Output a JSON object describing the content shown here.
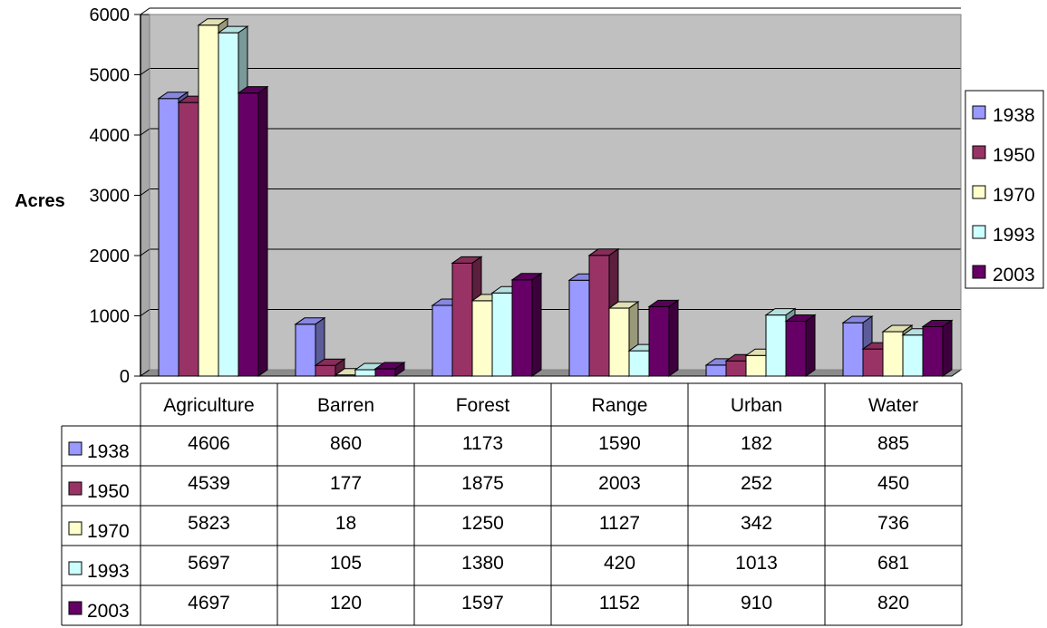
{
  "chart_data": {
    "type": "bar",
    "title": "",
    "xlabel": "",
    "ylabel": "Acres",
    "ylim": [
      0,
      6000
    ],
    "yticks": [
      0,
      1000,
      2000,
      3000,
      4000,
      5000,
      6000
    ],
    "grid": true,
    "legend_position": "right",
    "style": "3d-clustered-column-with-data-table",
    "background_color": "#C0C0C0",
    "categories": [
      "Agriculture",
      "Barren",
      "Forest",
      "Range",
      "Urban",
      "Water"
    ],
    "series": [
      {
        "name": "1938",
        "color": "#9999FF",
        "values": [
          4606,
          860,
          1173,
          1590,
          182,
          885
        ]
      },
      {
        "name": "1950",
        "color": "#993366",
        "values": [
          4539,
          177,
          1875,
          2003,
          252,
          450
        ]
      },
      {
        "name": "1970",
        "color": "#FFFFCC",
        "values": [
          5823,
          18,
          1250,
          1127,
          342,
          736
        ]
      },
      {
        "name": "1993",
        "color": "#CCFFFF",
        "values": [
          5697,
          105,
          1380,
          420,
          1013,
          681
        ]
      },
      {
        "name": "2003",
        "color": "#660066",
        "values": [
          4697,
          120,
          1597,
          1152,
          910,
          820
        ]
      }
    ]
  }
}
